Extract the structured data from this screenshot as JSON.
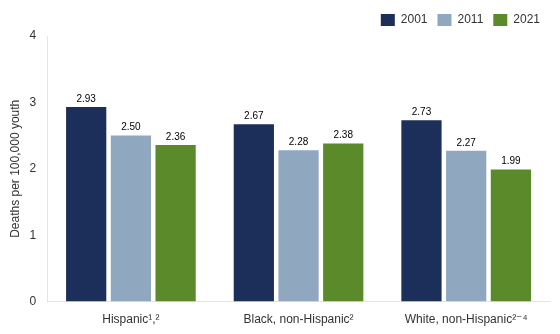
{
  "chart_data": {
    "type": "bar",
    "categories": [
      "Hispanic¹,²",
      "Black, non-Hispanic²",
      "White, non-Hispanic²⁻⁴"
    ],
    "series": [
      {
        "name": "2001",
        "color": "#1b2f5a",
        "values": [
          2.93,
          2.67,
          2.73
        ],
        "value_labels": [
          "2.93",
          "2.67",
          "2.73"
        ]
      },
      {
        "name": "2011",
        "color": "#8fa8c0",
        "values": [
          2.5,
          2.28,
          2.27
        ],
        "value_labels": [
          "2.50",
          "2.28",
          "2.27"
        ]
      },
      {
        "name": "2021",
        "color": "#5a8a2a",
        "values": [
          2.36,
          2.38,
          1.99
        ],
        "value_labels": [
          "2.36",
          "2.38",
          "1.99"
        ]
      }
    ],
    "ylabel": "Deaths per 100,000 youth",
    "ylim": [
      0,
      4
    ],
    "yticks": [
      0,
      1,
      2,
      3,
      4
    ],
    "grid": false,
    "legend": "upper right",
    "data_labels": true
  }
}
